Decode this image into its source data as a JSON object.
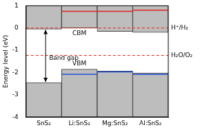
{
  "chart_data": {
    "type": "bar",
    "y_label": "Energy level (eV)",
    "categories": [
      "SnS₂",
      "Li:SnS₂",
      "Mg:SnS₂",
      "Al:SnS₂"
    ],
    "conduction_band": {
      "color": "#bdbdbd",
      "values": [
        [
          -0.05,
          1
        ],
        [
          0.0,
          1
        ],
        [
          -0.15,
          1
        ],
        [
          -0.2,
          1
        ]
      ]
    },
    "valence_band": {
      "color": "#bdbdbd",
      "values": [
        [
          -4,
          -2.45
        ],
        [
          -4,
          -1.85
        ],
        [
          -4,
          -1.93
        ],
        [
          -4,
          -2.02
        ]
      ]
    },
    "red_levels": {
      "color": "#e3201b",
      "values": [
        null,
        0.75,
        0.75,
        0.8
      ]
    },
    "blue_levels": {
      "color": "#1f4fd8",
      "values": [
        null,
        -2.08,
        -1.97,
        -2.08
      ]
    },
    "reference_lines": [
      {
        "label": "H⁺/H₂",
        "value": 0,
        "color": "#e3201b",
        "line_style": "dashed"
      },
      {
        "label": "H₂O/O₂",
        "value": -1.23,
        "color": "#e3201b",
        "line_style": "dashed"
      }
    ],
    "annotations": {
      "cbm": "CBM",
      "vbm": "VBM",
      "band_gap": "Band gap"
    },
    "ylim": [
      -4,
      1
    ],
    "yticks": [
      -4,
      -3,
      -2,
      -1,
      0,
      1
    ],
    "grid": false
  }
}
